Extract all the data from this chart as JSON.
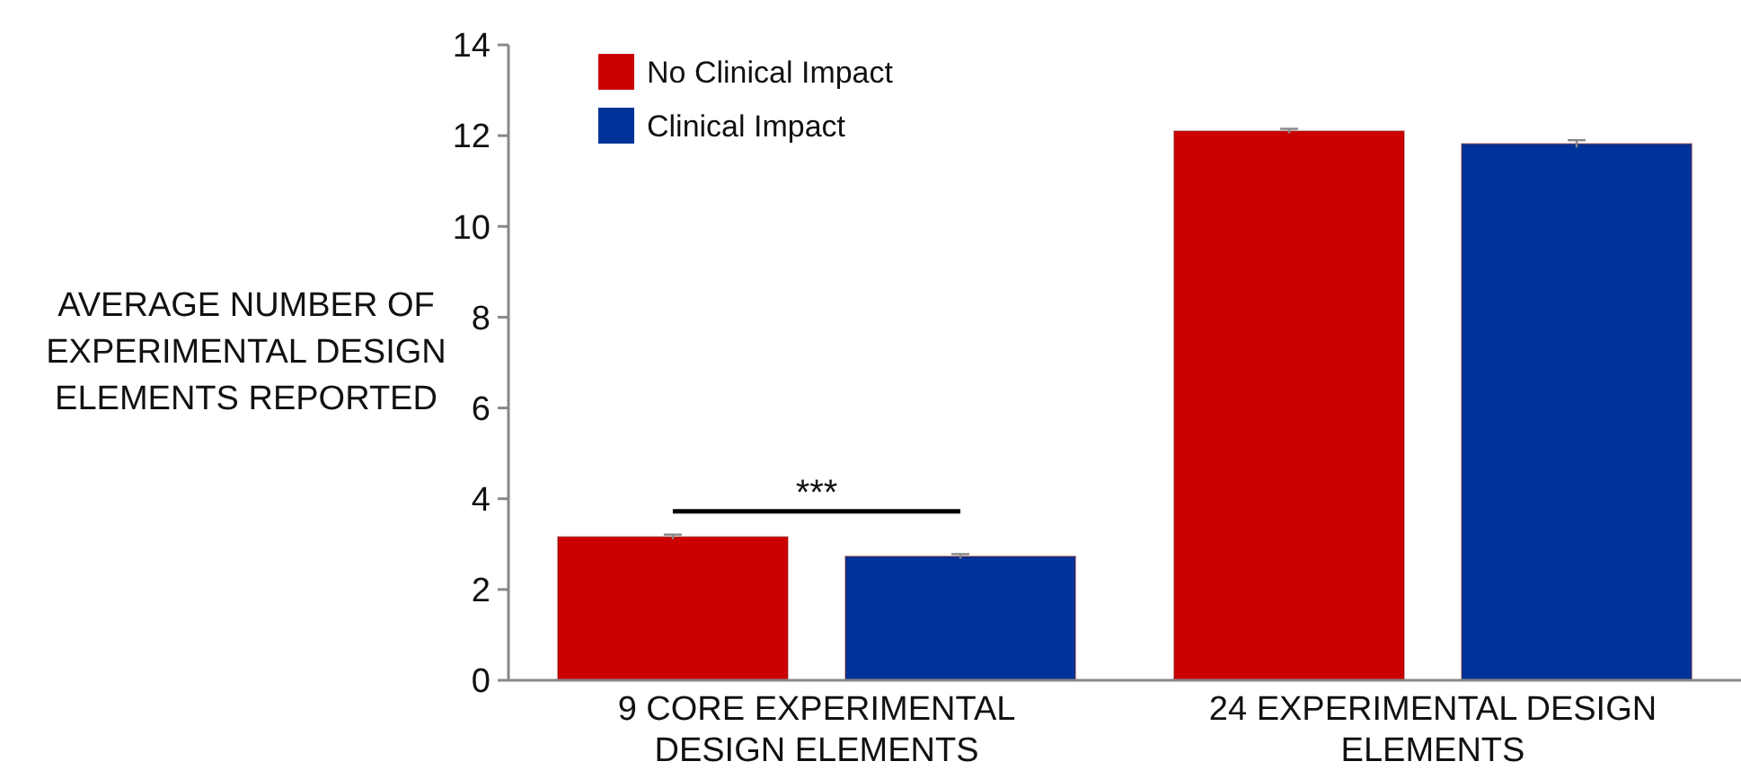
{
  "chart_data": {
    "type": "bar",
    "ylabel": "AVERAGE NUMBER OF EXPERIMENTAL DESIGN ELEMENTS REPORTED",
    "categories": [
      "9 CORE EXPERIMENTAL DESIGN ELEMENTS",
      "24 EXPERIMENTAL DESIGN ELEMENTS"
    ],
    "series": [
      {
        "name": "No Clinical Impact",
        "color": "#cc0000",
        "values": [
          3.16,
          12.1
        ],
        "errors": [
          0.05,
          0.05
        ]
      },
      {
        "name": "Clinical Impact",
        "color": "#003399",
        "values": [
          2.73,
          11.82
        ],
        "errors": [
          0.05,
          0.08
        ]
      }
    ],
    "ylim": [
      0,
      14
    ],
    "yticks": [
      0,
      2,
      4,
      6,
      8,
      10,
      12,
      14
    ],
    "grid": false,
    "legend": "top left",
    "annotations": [
      "***"
    ]
  }
}
